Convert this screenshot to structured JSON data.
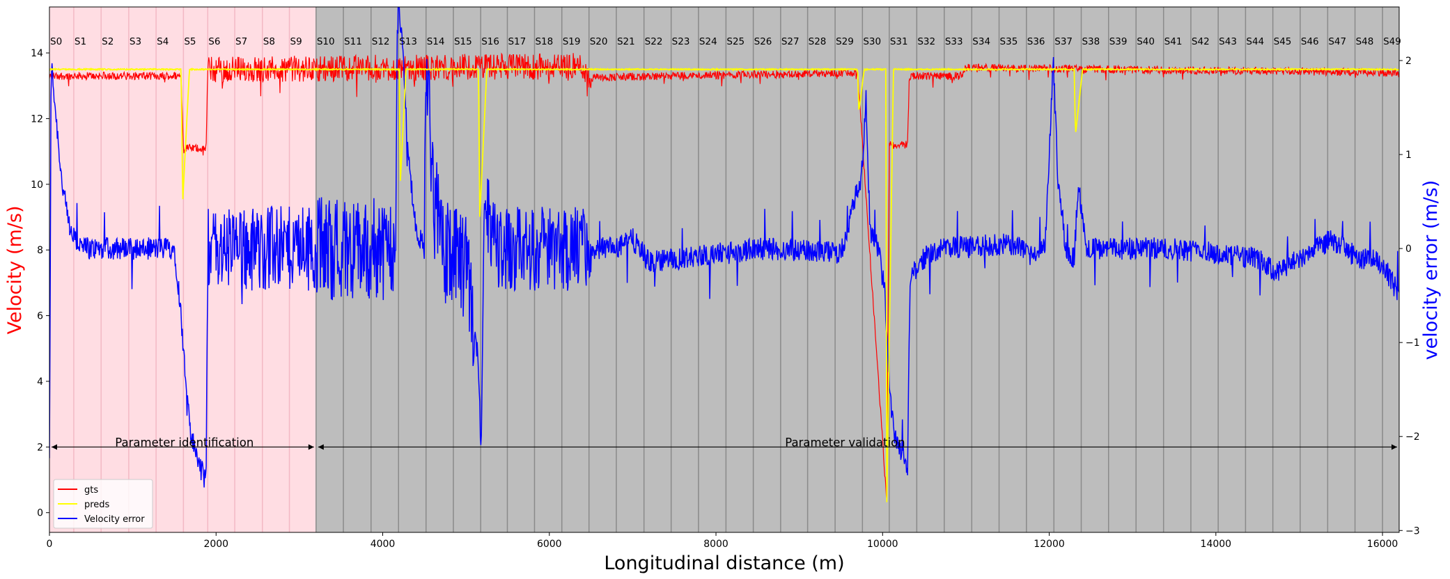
{
  "chart_data": {
    "type": "line",
    "xlabel": "Longitudinal distance (m)",
    "ylabel_left": "Velocity (m/s)",
    "ylabel_right": "velocity error (m/s)",
    "xlim": [
      0,
      16200
    ],
    "ylim_left": [
      -0.6,
      15.4
    ],
    "ylim_right": [
      -3.02,
      2.57
    ],
    "x_ticks": [
      0,
      2000,
      4000,
      6000,
      8000,
      10000,
      12000,
      14000,
      16000
    ],
    "y_ticks_left": [
      0,
      2,
      4,
      6,
      8,
      10,
      12,
      14
    ],
    "y_ticks_right": [
      -3,
      -2,
      -1,
      0,
      1,
      2
    ],
    "grid": false,
    "legend_position": "lower-left",
    "colors": {
      "gts": "#ff0000",
      "preds": "#ffff00",
      "error": "#0000ff",
      "identification_bg": "#ffdde3",
      "validation_bg": "#bdbdbd",
      "segment_line_pink": "#f3b8c4",
      "segment_line_grey": "#8a8a8a"
    },
    "series": [
      {
        "name": "gts",
        "axis": "left"
      },
      {
        "name": "preds",
        "axis": "left"
      },
      {
        "name": "Velocity error",
        "axis": "right"
      }
    ],
    "gts_base": [
      [
        0,
        13.3
      ],
      [
        1580,
        13.3
      ],
      [
        1610,
        11.1
      ],
      [
        1880,
        11.1
      ],
      [
        1900,
        13.5
      ],
      [
        6400,
        13.6
      ],
      [
        6450,
        13.25
      ],
      [
        9700,
        13.4
      ],
      [
        10050,
        0.3
      ],
      [
        10080,
        11.2
      ],
      [
        10300,
        11.2
      ],
      [
        10320,
        13.3
      ],
      [
        10950,
        13.3
      ],
      [
        11000,
        13.55
      ],
      [
        16200,
        13.4
      ]
    ],
    "preds_base": [
      [
        0,
        13.5
      ],
      [
        1580,
        13.5
      ],
      [
        1600,
        9.5
      ],
      [
        1680,
        13.5
      ],
      [
        4200,
        13.5
      ],
      [
        4210,
        10.0
      ],
      [
        4280,
        13.5
      ],
      [
        5150,
        13.5
      ],
      [
        5165,
        9.0
      ],
      [
        5250,
        13.5
      ],
      [
        9700,
        13.5
      ],
      [
        9715,
        12.2
      ],
      [
        9780,
        13.5
      ],
      [
        10040,
        13.5
      ],
      [
        10050,
        0.3
      ],
      [
        10130,
        13.5
      ],
      [
        12300,
        13.5
      ],
      [
        12315,
        11.5
      ],
      [
        12400,
        13.5
      ],
      [
        16200,
        13.5
      ]
    ],
    "error_base": [
      [
        0,
        -2.7
      ],
      [
        20,
        2.0
      ],
      [
        60,
        1.6
      ],
      [
        150,
        0.7
      ],
      [
        250,
        0.15
      ],
      [
        400,
        0.0
      ],
      [
        1500,
        0.0
      ],
      [
        1560,
        -0.5
      ],
      [
        1620,
        -1.2
      ],
      [
        1700,
        -2.0
      ],
      [
        1800,
        -2.3
      ],
      [
        1880,
        -2.5
      ],
      [
        1900,
        0.0
      ],
      [
        4150,
        0.0
      ],
      [
        4180,
        2.2
      ],
      [
        4230,
        2.4
      ],
      [
        4300,
        1.0
      ],
      [
        4400,
        0.2
      ],
      [
        4500,
        0.0
      ],
      [
        4520,
        2.0
      ],
      [
        4600,
        0.8
      ],
      [
        4700,
        0.0
      ],
      [
        5000,
        -0.2
      ],
      [
        5150,
        -1.2
      ],
      [
        5180,
        -2.2
      ],
      [
        5220,
        0.5
      ],
      [
        5300,
        0.2
      ],
      [
        5400,
        0.0
      ],
      [
        6800,
        0.0
      ],
      [
        7000,
        0.1
      ],
      [
        7200,
        -0.15
      ],
      [
        7600,
        -0.1
      ],
      [
        8600,
        0.0
      ],
      [
        9500,
        -0.05
      ],
      [
        9750,
        0.8
      ],
      [
        9800,
        1.6
      ],
      [
        9850,
        0.2
      ],
      [
        9950,
        0.0
      ],
      [
        10030,
        -0.5
      ],
      [
        10080,
        -1.5
      ],
      [
        10150,
        -2.0
      ],
      [
        10250,
        -2.2
      ],
      [
        10300,
        -2.3
      ],
      [
        10330,
        -0.3
      ],
      [
        10500,
        -0.1
      ],
      [
        10700,
        0.0
      ],
      [
        11600,
        0.05
      ],
      [
        11800,
        -0.1
      ],
      [
        11950,
        0.0
      ],
      [
        12050,
        2.0
      ],
      [
        12100,
        0.8
      ],
      [
        12200,
        0.0
      ],
      [
        12300,
        -0.1
      ],
      [
        12350,
        0.7
      ],
      [
        12450,
        0.0
      ],
      [
        13500,
        0.0
      ],
      [
        14500,
        -0.1
      ],
      [
        14700,
        -0.25
      ],
      [
        15000,
        -0.1
      ],
      [
        15400,
        0.1
      ],
      [
        15700,
        -0.1
      ],
      [
        16000,
        -0.15
      ],
      [
        16200,
        -0.5
      ]
    ],
    "error_noise_zones": [
      {
        "from": 1900,
        "to": 3200,
        "amp": 0.45
      },
      {
        "from": 3200,
        "to": 4200,
        "amp": 0.55
      },
      {
        "from": 4500,
        "to": 5100,
        "amp": 0.55
      },
      {
        "from": 5250,
        "to": 6500,
        "amp": 0.45
      }
    ],
    "gts_noise_zones": [
      {
        "from": 1900,
        "to": 6500,
        "amp": 0.4
      }
    ],
    "segment_boundaries": [
      0,
      292,
      620,
      952,
      1280,
      1608,
      1900,
      2224,
      2556,
      2880,
      3200,
      3528,
      3860,
      4190,
      4520,
      4848,
      5176,
      5496,
      5822,
      6150,
      6476,
      6804,
      7136,
      7462,
      7790,
      8120,
      8448,
      8776,
      9100,
      9430,
      9758,
      10080,
      10410,
      10740,
      11070,
      11398,
      11726,
      12056,
      12384,
      12712,
      13042,
      13372,
      13700,
      14028,
      14356,
      14684,
      15012,
      15342,
      15670,
      16000,
      16200
    ],
    "segment_labels": [
      "S0",
      "S1",
      "S2",
      "S3",
      "S4",
      "S5",
      "S6",
      "S7",
      "S8",
      "S9",
      "S10",
      "S11",
      "S12",
      "S13",
      "S14",
      "S15",
      "S16",
      "S17",
      "S18",
      "S19",
      "S20",
      "S21",
      "S22",
      "S23",
      "S24",
      "S25",
      "S26",
      "S27",
      "S28",
      "S29",
      "S30",
      "S31",
      "S32",
      "S33",
      "S34",
      "S35",
      "S36",
      "S37",
      "S38",
      "S39",
      "S40",
      "S41",
      "S42",
      "S43",
      "S44",
      "S45",
      "S46",
      "S47",
      "S48",
      "S49"
    ],
    "identification_range": [
      0,
      3200
    ],
    "validation_range": [
      3200,
      16200
    ],
    "annotations": [
      {
        "text": "Parameter identification",
        "from": 0,
        "to": 3200,
        "y": 2.0,
        "text_x": 1620
      },
      {
        "text": "Parameter validation",
        "from": 3200,
        "to": 16200,
        "y": 2.0,
        "text_x": 9550
      }
    ],
    "legend": [
      "gts",
      "preds",
      "Velocity error"
    ]
  }
}
